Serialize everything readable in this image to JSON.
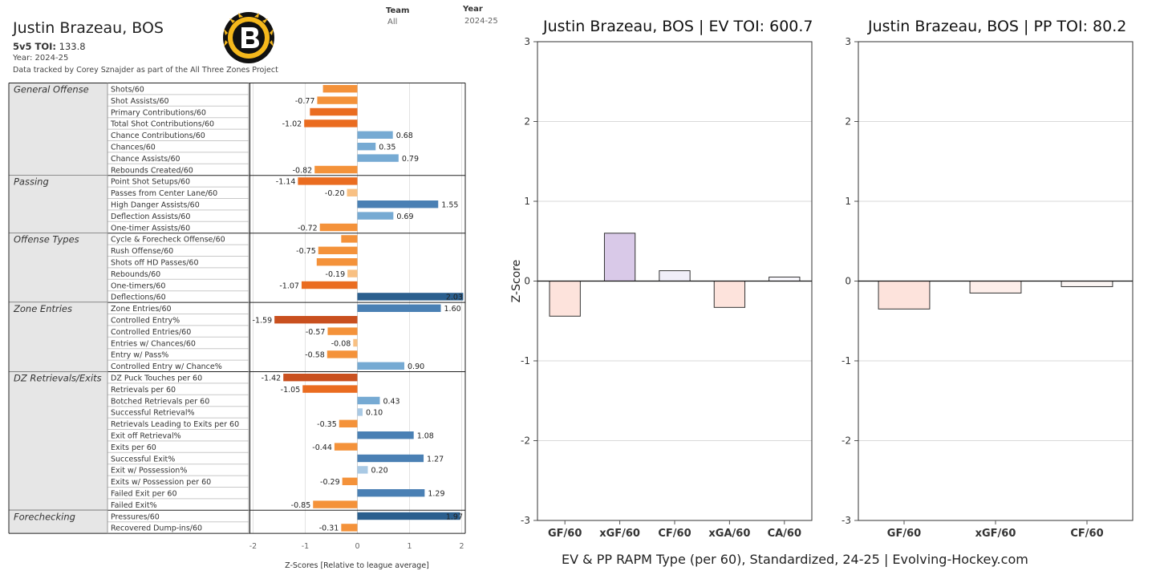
{
  "left_panel": {
    "title": "Justin Brazeau, BOS",
    "toi_label": "5v5 TOI:",
    "toi_value": "133.8",
    "year_line": "Year: 2024-25",
    "credit": "Data tracked by Corey Sznajder as part of the All Three Zones Project",
    "filters": {
      "team_label": "Team",
      "team_value": "All",
      "year_label": "Year",
      "year_value": "2024-25"
    },
    "logo_icon": "bruins-logo-icon",
    "x_axis_title": "Z-Scores [Relative to league average]"
  },
  "ev_title": "Justin Brazeau, BOS  |  EV TOI: 600.7",
  "pp_title": "Justin Brazeau, BOS  |  PP TOI: 80.2",
  "footer": "EV & PP RAPM Type (per 60), Standardized, 24-25    |    Evolving-Hockey.com",
  "colors": {
    "orange_dark": "#c9501f",
    "orange": "#ea6c20",
    "orange_mid": "#f4923a",
    "orange_light": "#f8c083",
    "blue_dark": "#2b5f8e",
    "blue": "#4a80b4",
    "blue_mid": "#76aad3",
    "blue_light": "#a9c9e4",
    "rapm_pink": "#fde3dc",
    "rapm_purple": "#d9c9e8",
    "rapm_lavender": "#f0eef8"
  },
  "chart_data": [
    {
      "type": "bar",
      "orientation": "horizontal",
      "xlabel": "Z-Scores [Relative to league average]",
      "xlim": [
        -2,
        2
      ],
      "x_ticks": [
        "-2",
        "-1",
        "0",
        "1",
        "2"
      ],
      "groups": [
        {
          "name": "General Offense",
          "metrics": [
            {
              "label": "Shots/60",
              "value": -0.66,
              "value_label": ""
            },
            {
              "label": "Shot Assists/60",
              "value": -0.77,
              "value_label": "-0.77"
            },
            {
              "label": "Primary Contributions/60",
              "value": -0.91,
              "value_label": ""
            },
            {
              "label": "Total Shot Contributions/60",
              "value": -1.02,
              "value_label": "-1.02"
            },
            {
              "label": "Chance Contributions/60",
              "value": 0.68,
              "value_label": "0.68"
            },
            {
              "label": "Chances/60",
              "value": 0.35,
              "value_label": "0.35"
            },
            {
              "label": "Chance Assists/60",
              "value": 0.79,
              "value_label": "0.79"
            },
            {
              "label": "Rebounds Created/60",
              "value": -0.82,
              "value_label": "-0.82"
            }
          ]
        },
        {
          "name": "Passing",
          "metrics": [
            {
              "label": "Point Shot Setups/60",
              "value": -1.14,
              "value_label": "-1.14"
            },
            {
              "label": "Passes from Center Lane/60",
              "value": -0.2,
              "value_label": "-0.20"
            },
            {
              "label": "High Danger Assists/60",
              "value": 1.55,
              "value_label": "1.55"
            },
            {
              "label": "Deflection Assists/60",
              "value": 0.69,
              "value_label": "0.69"
            },
            {
              "label": "One-timer Assists/60",
              "value": -0.72,
              "value_label": "-0.72"
            }
          ]
        },
        {
          "name": "Offense Types",
          "metrics": [
            {
              "label": "Cycle & Forecheck Offense/60",
              "value": -0.31,
              "value_label": ""
            },
            {
              "label": "Rush Offense/60",
              "value": -0.75,
              "value_label": "-0.75"
            },
            {
              "label": "Shots off HD Passes/60",
              "value": -0.78,
              "value_label": ""
            },
            {
              "label": "Rebounds/60",
              "value": -0.19,
              "value_label": "-0.19"
            },
            {
              "label": "One-timers/60",
              "value": -1.07,
              "value_label": "-1.07"
            },
            {
              "label": "Deflections/60",
              "value": 2.03,
              "value_label": "2.03"
            }
          ]
        },
        {
          "name": "Zone Entries",
          "metrics": [
            {
              "label": "Zone Entries/60",
              "value": 1.6,
              "value_label": "1.60"
            },
            {
              "label": "Controlled Entry%",
              "value": -1.59,
              "value_label": "-1.59"
            },
            {
              "label": "Controlled Entries/60",
              "value": -0.57,
              "value_label": "-0.57"
            },
            {
              "label": "Entries w/ Chances/60",
              "value": -0.08,
              "value_label": "-0.08"
            },
            {
              "label": "Entry w/ Pass%",
              "value": -0.58,
              "value_label": "-0.58"
            },
            {
              "label": "Controlled Entry w/ Chance%",
              "value": 0.9,
              "value_label": "0.90"
            }
          ]
        },
        {
          "name": "DZ Retrievals/Exits",
          "metrics": [
            {
              "label": "DZ Puck Touches per 60",
              "value": -1.42,
              "value_label": "-1.42"
            },
            {
              "label": "Retrievals per 60",
              "value": -1.05,
              "value_label": "-1.05"
            },
            {
              "label": "Botched Retrievals per 60",
              "value": 0.43,
              "value_label": "0.43"
            },
            {
              "label": "Successful Retrieval%",
              "value": 0.1,
              "value_label": "0.10"
            },
            {
              "label": "Retrievals Leading to Exits per 60",
              "value": -0.35,
              "value_label": "-0.35"
            },
            {
              "label": "Exit off Retrieval%",
              "value": 1.08,
              "value_label": "1.08"
            },
            {
              "label": "Exits per 60",
              "value": -0.44,
              "value_label": "-0.44"
            },
            {
              "label": "Successful Exit%",
              "value": 1.27,
              "value_label": "1.27"
            },
            {
              "label": "Exit w/ Possession%",
              "value": 0.2,
              "value_label": "0.20"
            },
            {
              "label": "Exits w/ Possession per 60",
              "value": -0.29,
              "value_label": "-0.29"
            },
            {
              "label": "Failed Exit per 60",
              "value": 1.29,
              "value_label": "1.29"
            },
            {
              "label": "Failed Exit%",
              "value": -0.85,
              "value_label": "-0.85"
            }
          ]
        },
        {
          "name": "Forechecking",
          "metrics": [
            {
              "label": "Pressures/60",
              "value": 1.97,
              "value_label": "1.97"
            },
            {
              "label": "Recovered Dump-ins/60",
              "value": -0.31,
              "value_label": "-0.31"
            }
          ]
        }
      ]
    },
    {
      "type": "bar",
      "title": "Justin Brazeau, BOS  |  EV TOI: 600.7",
      "ylabel": "Z-Score",
      "ylim": [
        -3,
        3
      ],
      "y_ticks": [
        "-3",
        "-2",
        "-1",
        "0",
        "1",
        "2",
        "3"
      ],
      "categories": [
        "GF/60",
        "xGF/60",
        "CF/60",
        "xGA/60",
        "CA/60"
      ],
      "values": [
        -0.44,
        0.6,
        0.13,
        -0.33,
        0.05
      ],
      "grid": true
    },
    {
      "type": "bar",
      "title": "Justin Brazeau, BOS  |  PP TOI: 80.2",
      "ylabel": "",
      "ylim": [
        -3,
        3
      ],
      "y_ticks": [
        "-3",
        "-2",
        "-1",
        "0",
        "1",
        "2",
        "3"
      ],
      "categories": [
        "GF/60",
        "xGF/60",
        "CF/60"
      ],
      "values": [
        -0.35,
        -0.15,
        -0.07
      ],
      "grid": true
    }
  ]
}
